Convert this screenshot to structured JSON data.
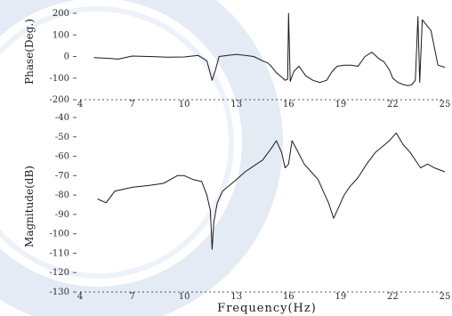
{
  "colors": {
    "trace": "#1a1a1a",
    "axis": "#555555",
    "watermark": "#c9d6ea"
  },
  "chart_data": [
    {
      "type": "line",
      "name": "phase",
      "ylabel": "Phase(Deg.)",
      "xlabel": "",
      "xlim": [
        4,
        25
      ],
      "ylim": [
        -200,
        200
      ],
      "xticks": [
        4,
        7,
        10,
        13,
        16,
        19,
        22,
        25
      ],
      "xtick_labels": [
        "4",
        "7",
        "10",
        "13",
        "16",
        "19",
        "22",
        "25"
      ],
      "yticks": [
        200,
        100,
        0,
        -100,
        -200
      ],
      "ytick_labels": [
        "200",
        "100",
        "0",
        "-100",
        "-200"
      ],
      "grid": false,
      "series": [
        {
          "x": [
            4.8,
            5.5,
            6.2,
            7.0,
            8.0,
            9.0,
            10.0,
            10.8,
            11.3,
            11.6,
            11.8,
            12.0,
            12.5,
            13.0,
            13.5,
            14.0,
            14.5,
            14.8,
            15.0,
            15.3,
            15.6,
            15.8,
            15.95,
            16.0,
            16.1,
            16.3,
            16.6,
            17.0,
            17.4,
            17.8,
            18.2,
            18.5,
            18.8,
            19.2,
            19.6,
            20.0,
            20.4,
            20.8,
            21.2,
            21.5,
            21.8,
            22.0,
            22.3,
            22.6,
            22.9,
            23.1,
            23.3,
            23.45,
            23.55,
            23.7,
            23.9,
            24.2,
            24.6,
            25.0
          ],
          "y": [
            -5,
            -8,
            -12,
            2,
            0,
            -3,
            -2,
            5,
            -20,
            -110,
            -60,
            0,
            5,
            10,
            5,
            0,
            -20,
            -30,
            -45,
            -75,
            -95,
            -110,
            -105,
            200,
            -115,
            -70,
            -45,
            -90,
            -110,
            -120,
            -110,
            -70,
            -45,
            -40,
            -40,
            -45,
            0,
            20,
            -10,
            -25,
            -60,
            -100,
            -120,
            -130,
            -135,
            -130,
            -110,
            185,
            -120,
            170,
            150,
            120,
            -40,
            -50
          ]
        }
      ]
    },
    {
      "type": "line",
      "name": "magnitude",
      "ylabel": "Magnitude(dB)",
      "xlabel": "Frequency(Hz)",
      "xlim": [
        4,
        25
      ],
      "ylim": [
        -130,
        -40
      ],
      "xticks": [
        4,
        7,
        10,
        13,
        16,
        19,
        22,
        25
      ],
      "xtick_labels": [
        "4",
        "7",
        "10",
        "13",
        "16",
        "19",
        "22",
        "25"
      ],
      "yticks": [
        -40,
        -50,
        -60,
        -70,
        -80,
        -90,
        -100,
        -110,
        -120,
        -130
      ],
      "ytick_labels": [
        "-40",
        "-50",
        "-60",
        "-70",
        "-80",
        "-90",
        "-100",
        "-110",
        "-120",
        "-130"
      ],
      "grid": false,
      "series": [
        {
          "x": [
            5.0,
            5.5,
            6.0,
            7.0,
            8.0,
            8.8,
            9.2,
            9.6,
            10.0,
            10.5,
            11.0,
            11.3,
            11.5,
            11.6,
            11.7,
            11.9,
            12.2,
            12.6,
            13.0,
            13.5,
            14.0,
            14.5,
            15.0,
            15.3,
            15.6,
            15.8,
            16.0,
            16.2,
            16.5,
            16.9,
            17.3,
            17.7,
            18.0,
            18.3,
            18.6,
            18.9,
            19.2,
            19.5,
            20.0,
            20.5,
            21.0,
            21.4,
            21.8,
            22.2,
            22.6,
            23.0,
            23.3,
            23.6,
            24.0,
            24.4,
            25.0
          ],
          "y": [
            -82,
            -84,
            -78,
            -76,
            -75,
            -74,
            -72,
            -70,
            -70,
            -72,
            -73,
            -80,
            -88,
            -108,
            -94,
            -84,
            -78,
            -75,
            -72,
            -68,
            -65,
            -62,
            -56,
            -52,
            -58,
            -66,
            -64,
            -52,
            -57,
            -64,
            -68,
            -72,
            -78,
            -84,
            -92,
            -86,
            -80,
            -76,
            -71,
            -64,
            -58,
            -55,
            -52,
            -48,
            -54,
            -58,
            -62,
            -66,
            -64,
            -66,
            -68
          ]
        }
      ]
    }
  ]
}
